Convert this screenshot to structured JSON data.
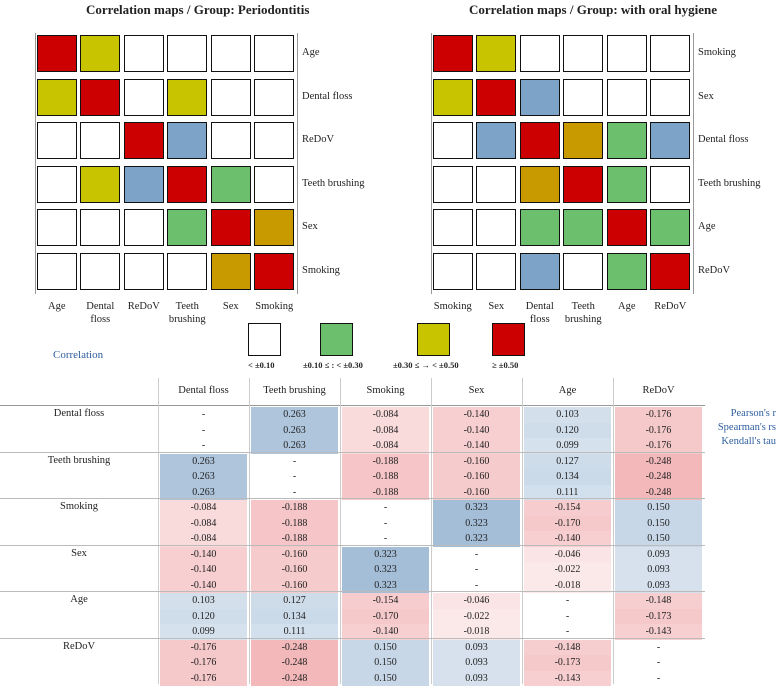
{
  "colors": {
    "none": "#ffffff",
    "weak": "#6cbf6c",
    "moderate": "#c8c400",
    "strong": "#cc0000",
    "other": "#7ea3c8",
    "medium": "#c99a00",
    "pos_shade": "#c7d9ea",
    "neg_shade": "#f6c8c9"
  },
  "chart_data": [
    {
      "type": "heatmap",
      "title": "Correlation maps / Group: Periodontitis",
      "row_labels": [
        "Age",
        "Dental floss",
        "ReDoV",
        "Teeth brushing",
        "Sex",
        "Smoking"
      ],
      "col_labels": [
        "Age",
        "Dental floss",
        "ReDoV",
        "Teeth brushing",
        "Sex",
        "Smoking"
      ],
      "cells": [
        [
          "strong",
          "moderate",
          "none",
          "none",
          "none",
          "none"
        ],
        [
          "moderate",
          "strong",
          "none",
          "moderate",
          "none",
          "none"
        ],
        [
          "none",
          "none",
          "strong",
          "other",
          "none",
          "none"
        ],
        [
          "none",
          "moderate",
          "other",
          "strong",
          "weak",
          "none"
        ],
        [
          "none",
          "none",
          "none",
          "weak",
          "strong",
          "medium"
        ],
        [
          "none",
          "none",
          "none",
          "none",
          "medium",
          "strong"
        ]
      ]
    },
    {
      "type": "heatmap",
      "title": "Correlation maps / Group: with oral hygiene",
      "row_labels": [
        "Smoking",
        "Sex",
        "Dental floss",
        "Teeth brushing",
        "Age",
        "ReDoV"
      ],
      "col_labels": [
        "Smoking",
        "Sex",
        "Dental floss",
        "Teeth brushing",
        "Age",
        "ReDoV"
      ],
      "cells": [
        [
          "strong",
          "moderate",
          "none",
          "none",
          "none",
          "none"
        ],
        [
          "moderate",
          "strong",
          "other",
          "none",
          "none",
          "none"
        ],
        [
          "none",
          "other",
          "strong",
          "medium",
          "weak",
          "other"
        ],
        [
          "none",
          "none",
          "medium",
          "strong",
          "weak",
          "none"
        ],
        [
          "none",
          "none",
          "weak",
          "weak",
          "strong",
          "weak"
        ],
        [
          "none",
          "none",
          "other",
          "none",
          "weak",
          "strong"
        ]
      ]
    },
    {
      "type": "table",
      "title": "Correlation",
      "legend": [
        {
          "label": "< ±0.10",
          "color_key": "none"
        },
        {
          "label": "±0.10 ≤ : < ±0.30",
          "color_key": "weak"
        },
        {
          "label": "±0.30 ≤ → < ±0.50",
          "color_key": "moderate"
        },
        {
          "label": "≥ ±0.50",
          "color_key": "strong"
        }
      ],
      "methods": [
        "Pearson's r",
        "Spearman's rs",
        "Kendall's tau"
      ],
      "columns": [
        "Dental floss",
        "Teeth brushing",
        "Smoking",
        "Sex",
        "Age",
        "ReDoV"
      ],
      "rows": [
        {
          "name": "Dental floss",
          "values": [
            [
              "-",
              "-",
              "-"
            ],
            [
              "0.263",
              "0.263",
              "0.263"
            ],
            [
              "-0.084",
              "-0.084",
              "-0.084"
            ],
            [
              "-0.140",
              "-0.140",
              "-0.140"
            ],
            [
              "0.103",
              "0.120",
              "0.099"
            ],
            [
              "-0.176",
              "-0.176",
              "-0.176"
            ]
          ]
        },
        {
          "name": "Teeth brushing",
          "values": [
            [
              "0.263",
              "0.263",
              "0.263"
            ],
            [
              "-",
              "-",
              "-"
            ],
            [
              "-0.188",
              "-0.188",
              "-0.188"
            ],
            [
              "-0.160",
              "-0.160",
              "-0.160"
            ],
            [
              "0.127",
              "0.134",
              "0.111"
            ],
            [
              "-0.248",
              "-0.248",
              "-0.248"
            ]
          ]
        },
        {
          "name": "Smoking",
          "values": [
            [
              "-0.084",
              "-0.084",
              "-0.084"
            ],
            [
              "-0.188",
              "-0.188",
              "-0.188"
            ],
            [
              "-",
              "-",
              "-"
            ],
            [
              "0.323",
              "0.323",
              "0.323"
            ],
            [
              "-0.154",
              "-0.170",
              "-0.140"
            ],
            [
              "0.150",
              "0.150",
              "0.150"
            ]
          ]
        },
        {
          "name": "Sex",
          "values": [
            [
              "-0.140",
              "-0.140",
              "-0.140"
            ],
            [
              "-0.160",
              "-0.160",
              "-0.160"
            ],
            [
              "0.323",
              "0.323",
              "0.323"
            ],
            [
              "-",
              "-",
              "-"
            ],
            [
              "-0.046",
              "-0.022",
              "-0.018"
            ],
            [
              "0.093",
              "0.093",
              "0.093"
            ]
          ]
        },
        {
          "name": "Age",
          "values": [
            [
              "0.103",
              "0.120",
              "0.099"
            ],
            [
              "0.127",
              "0.134",
              "0.111"
            ],
            [
              "-0.154",
              "-0.170",
              "-0.140"
            ],
            [
              "-0.046",
              "-0.022",
              "-0.018"
            ],
            [
              "-",
              "-",
              "-"
            ],
            [
              "-0.148",
              "-0.173",
              "-0.143"
            ]
          ]
        },
        {
          "name": "ReDoV",
          "values": [
            [
              "-0.176",
              "-0.176",
              "-0.176"
            ],
            [
              "-0.248",
              "-0.248",
              "-0.248"
            ],
            [
              "0.150",
              "0.150",
              "0.150"
            ],
            [
              "0.093",
              "0.093",
              "0.093"
            ],
            [
              "-0.148",
              "-0.173",
              "-0.143"
            ],
            [
              "-",
              "-",
              "-"
            ]
          ]
        }
      ]
    }
  ]
}
